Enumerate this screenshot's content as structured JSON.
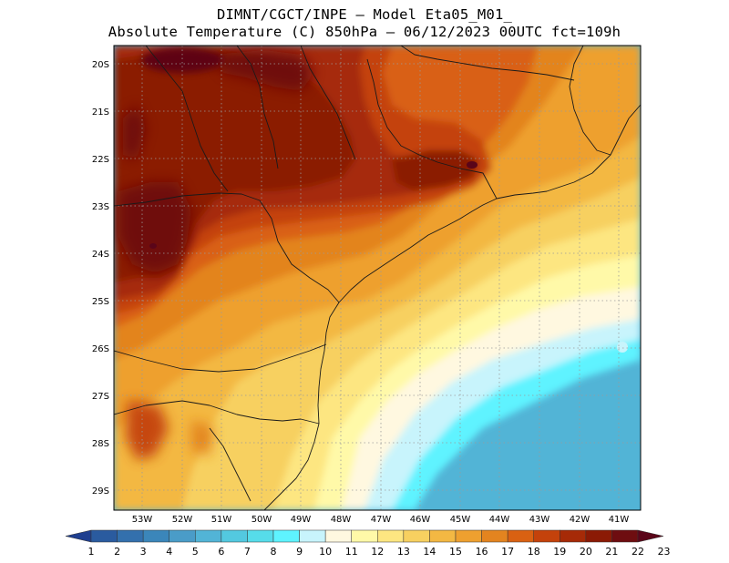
{
  "header": {
    "line1": "DIMNT/CGCT/INPE –  Model Eta05_M01_",
    "line2": "Absolute Temperature (C) 850hPa –  06/12/2023 00UTC fct=109h"
  },
  "map": {
    "lat_labels": [
      "20S",
      "21S",
      "22S",
      "23S",
      "24S",
      "25S",
      "26S",
      "27S",
      "28S",
      "29S"
    ],
    "lon_labels": [
      "53W",
      "52W",
      "51W",
      "50W",
      "49W",
      "48W",
      "47W",
      "46W",
      "45W",
      "44W",
      "43W",
      "42W",
      "41W"
    ],
    "lon_range": [
      -53.75,
      -40.5
    ],
    "lat_range": [
      -29.4,
      -19.6
    ]
  },
  "colorbar": {
    "labels": [
      "1",
      "2",
      "3",
      "4",
      "5",
      "6",
      "7",
      "8",
      "9",
      "10",
      "11",
      "12",
      "13",
      "14",
      "15",
      "16",
      "17",
      "18",
      "19",
      "20",
      "21",
      "22",
      "23"
    ],
    "colors": [
      "#1f3f8f",
      "#2a5b9f",
      "#3370ad",
      "#3b86ba",
      "#4a9cc8",
      "#52b4d6",
      "#53c9e0",
      "#56dcea",
      "#5ef3ff",
      "#c8f4fc",
      "#fff8e0",
      "#fff9a8",
      "#fde681",
      "#f7d060",
      "#f3b843",
      "#eea02f",
      "#e3841f",
      "#d96112",
      "#c4420b",
      "#a62a07",
      "#8b1a05",
      "#6e0d10",
      "#5a0519"
    ]
  }
}
